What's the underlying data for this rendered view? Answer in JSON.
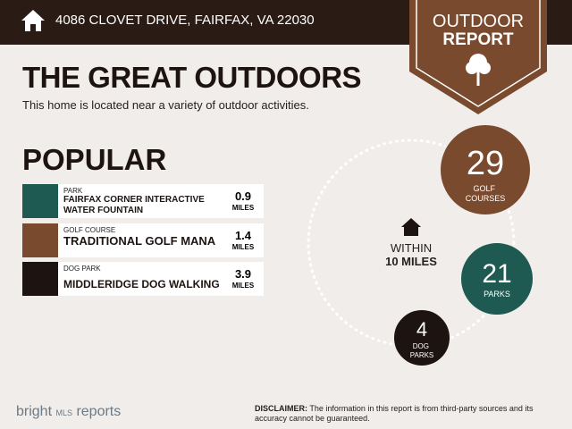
{
  "header": {
    "address": "4086 CLOVET DRIVE, FAIRFAX, VA 22030"
  },
  "badge": {
    "line1": "OUTDOOR",
    "line2": "REPORT"
  },
  "title": "THE GREAT OUTDOORS",
  "subtitle": "This home is located near a variety of outdoor activities.",
  "popular": {
    "heading": "POPULAR",
    "items": [
      {
        "category": "PARK",
        "name": "FAIRFAX CORNER INTERACTIVE WATER FOUNTAIN",
        "distance": 0.9,
        "unit": "MILES"
      },
      {
        "category": "GOLF COURSE",
        "name": "TRADITIONAL GOLF MANA",
        "distance": 1.4,
        "unit": "MILES"
      },
      {
        "category": "DOG PARK",
        "name": "MIDDLERIDGE DOG WALKING",
        "distance": 3.9,
        "unit": "MILES"
      }
    ]
  },
  "summary": {
    "within": "WITHIN",
    "radius": "10 MILES",
    "counts": [
      {
        "count": 29,
        "label": "GOLF COURSES"
      },
      {
        "count": 21,
        "label": "PARKS"
      },
      {
        "count": 4,
        "label": "DOG PARKS"
      }
    ]
  },
  "footer": {
    "logo": "bright",
    "logo_suffix": "MLS",
    "brand": "reports",
    "disclaimer_label": "DISCLAIMER:",
    "disclaimer": "The information in this report is from third-party sources and its accuracy cannot be guaranteed."
  }
}
